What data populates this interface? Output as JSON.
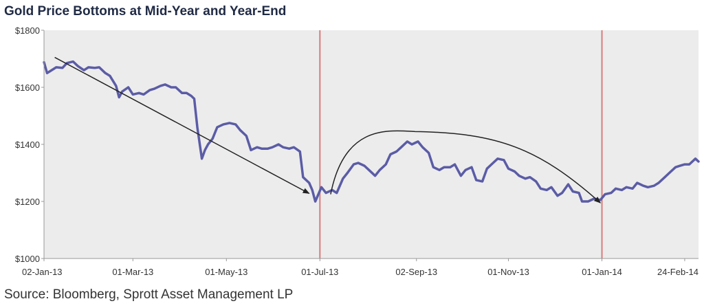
{
  "title": "Gold Price Bottoms at Mid-Year and Year-End",
  "source": "Source: Bloomberg, Sprott Asset Management LP",
  "colors": {
    "series": "#5b5ca6",
    "plot_bg": "#ececec",
    "marker_line": "#d97b7b",
    "annotation_arrow": "#222222"
  },
  "chart_data": {
    "type": "line",
    "title": "Gold Price Bottoms at Mid-Year and Year-End",
    "xlabel": "",
    "ylabel": "",
    "ylim": [
      1000,
      1800
    ],
    "xlim": [
      "2013-01-02",
      "2014-03-05"
    ],
    "grid": false,
    "y_ticks": [
      {
        "value": 1800,
        "label": "$1800"
      },
      {
        "value": 1600,
        "label": "$1600"
      },
      {
        "value": 1400,
        "label": "$1400"
      },
      {
        "value": 1200,
        "label": "$1200"
      },
      {
        "value": 1000,
        "label": "$1000"
      }
    ],
    "x_ticks": [
      {
        "date": "2013-01-02",
        "label": "02-Jan-13"
      },
      {
        "date": "2013-03-01",
        "label": "01-Mar-13"
      },
      {
        "date": "2013-05-01",
        "label": "01-May-13"
      },
      {
        "date": "2013-07-01",
        "label": "01-Jul-13"
      },
      {
        "date": "2013-09-02",
        "label": "02-Sep-13"
      },
      {
        "date": "2013-11-01",
        "label": "01-Nov-13"
      },
      {
        "date": "2014-01-01",
        "label": "01-Jan-14"
      },
      {
        "date": "2014-02-24",
        "label": "24-Feb-14"
      }
    ],
    "reference_lines": [
      "2013-07-01",
      "2014-01-01"
    ],
    "annotations": [
      {
        "type": "arrow",
        "from": {
          "x": "2013-01-09",
          "y": 1705
        },
        "to": {
          "x": "2013-06-24",
          "y": 1228
        }
      },
      {
        "type": "arc-arrow",
        "from": {
          "x": "2013-07-08",
          "y": 1225
        },
        "peak": {
          "x": "2013-09-01",
          "y": 1445
        },
        "to": {
          "x": "2013-12-31",
          "y": 1195
        }
      }
    ],
    "series": [
      {
        "values": [
          [
            "2013-01-02",
            1688
          ],
          [
            "2013-01-04",
            1650
          ],
          [
            "2013-01-07",
            1660
          ],
          [
            "2013-01-10",
            1670
          ],
          [
            "2013-01-14",
            1668
          ],
          [
            "2013-01-17",
            1685
          ],
          [
            "2013-01-21",
            1690
          ],
          [
            "2013-01-24",
            1675
          ],
          [
            "2013-01-28",
            1660
          ],
          [
            "2013-01-31",
            1670
          ],
          [
            "2013-02-04",
            1668
          ],
          [
            "2013-02-07",
            1670
          ],
          [
            "2013-02-11",
            1650
          ],
          [
            "2013-02-14",
            1640
          ],
          [
            "2013-02-18",
            1605
          ],
          [
            "2013-02-20",
            1565
          ],
          [
            "2013-02-22",
            1585
          ],
          [
            "2013-02-26",
            1600
          ],
          [
            "2013-03-01",
            1575
          ],
          [
            "2013-03-05",
            1580
          ],
          [
            "2013-03-08",
            1575
          ],
          [
            "2013-03-12",
            1590
          ],
          [
            "2013-03-15",
            1595
          ],
          [
            "2013-03-19",
            1605
          ],
          [
            "2013-03-22",
            1610
          ],
          [
            "2013-03-26",
            1600
          ],
          [
            "2013-03-29",
            1600
          ],
          [
            "2013-04-02",
            1580
          ],
          [
            "2013-04-05",
            1580
          ],
          [
            "2013-04-08",
            1570
          ],
          [
            "2013-04-10",
            1560
          ],
          [
            "2013-04-12",
            1460
          ],
          [
            "2013-04-15",
            1350
          ],
          [
            "2013-04-17",
            1380
          ],
          [
            "2013-04-19",
            1400
          ],
          [
            "2013-04-22",
            1420
          ],
          [
            "2013-04-25",
            1460
          ],
          [
            "2013-04-29",
            1470
          ],
          [
            "2013-05-03",
            1475
          ],
          [
            "2013-05-07",
            1470
          ],
          [
            "2013-05-10",
            1450
          ],
          [
            "2013-05-14",
            1430
          ],
          [
            "2013-05-17",
            1380
          ],
          [
            "2013-05-21",
            1390
          ],
          [
            "2013-05-24",
            1385
          ],
          [
            "2013-05-28",
            1385
          ],
          [
            "2013-05-31",
            1390
          ],
          [
            "2013-06-04",
            1400
          ],
          [
            "2013-06-07",
            1390
          ],
          [
            "2013-06-11",
            1385
          ],
          [
            "2013-06-14",
            1390
          ],
          [
            "2013-06-18",
            1375
          ],
          [
            "2013-06-20",
            1285
          ],
          [
            "2013-06-24",
            1265
          ],
          [
            "2013-06-26",
            1240
          ],
          [
            "2013-06-28",
            1200
          ],
          [
            "2013-07-02",
            1250
          ],
          [
            "2013-07-05",
            1230
          ],
          [
            "2013-07-09",
            1240
          ],
          [
            "2013-07-12",
            1230
          ],
          [
            "2013-07-16",
            1280
          ],
          [
            "2013-07-19",
            1300
          ],
          [
            "2013-07-23",
            1330
          ],
          [
            "2013-07-26",
            1335
          ],
          [
            "2013-07-30",
            1325
          ],
          [
            "2013-08-02",
            1310
          ],
          [
            "2013-08-06",
            1290
          ],
          [
            "2013-08-09",
            1310
          ],
          [
            "2013-08-13",
            1330
          ],
          [
            "2013-08-16",
            1365
          ],
          [
            "2013-08-20",
            1375
          ],
          [
            "2013-08-23",
            1390
          ],
          [
            "2013-08-27",
            1410
          ],
          [
            "2013-08-30",
            1400
          ],
          [
            "2013-09-03",
            1410
          ],
          [
            "2013-09-06",
            1390
          ],
          [
            "2013-09-10",
            1370
          ],
          [
            "2013-09-13",
            1320
          ],
          [
            "2013-09-17",
            1310
          ],
          [
            "2013-09-20",
            1320
          ],
          [
            "2013-09-24",
            1320
          ],
          [
            "2013-09-27",
            1330
          ],
          [
            "2013-10-01",
            1290
          ],
          [
            "2013-10-04",
            1310
          ],
          [
            "2013-10-08",
            1320
          ],
          [
            "2013-10-11",
            1275
          ],
          [
            "2013-10-15",
            1270
          ],
          [
            "2013-10-18",
            1315
          ],
          [
            "2013-10-22",
            1335
          ],
          [
            "2013-10-25",
            1350
          ],
          [
            "2013-10-29",
            1345
          ],
          [
            "2013-11-01",
            1315
          ],
          [
            "2013-11-05",
            1305
          ],
          [
            "2013-11-08",
            1290
          ],
          [
            "2013-11-12",
            1280
          ],
          [
            "2013-11-15",
            1285
          ],
          [
            "2013-11-19",
            1270
          ],
          [
            "2013-11-22",
            1245
          ],
          [
            "2013-11-26",
            1240
          ],
          [
            "2013-11-29",
            1250
          ],
          [
            "2013-12-03",
            1220
          ],
          [
            "2013-12-06",
            1230
          ],
          [
            "2013-12-10",
            1260
          ],
          [
            "2013-12-13",
            1235
          ],
          [
            "2013-12-17",
            1230
          ],
          [
            "2013-12-19",
            1200
          ],
          [
            "2013-12-23",
            1200
          ],
          [
            "2013-12-27",
            1210
          ],
          [
            "2013-12-31",
            1205
          ],
          [
            "2014-01-03",
            1225
          ],
          [
            "2014-01-07",
            1230
          ],
          [
            "2014-01-10",
            1245
          ],
          [
            "2014-01-14",
            1240
          ],
          [
            "2014-01-17",
            1250
          ],
          [
            "2014-01-21",
            1245
          ],
          [
            "2014-01-24",
            1265
          ],
          [
            "2014-01-28",
            1255
          ],
          [
            "2014-01-31",
            1250
          ],
          [
            "2014-02-04",
            1255
          ],
          [
            "2014-02-07",
            1265
          ],
          [
            "2014-02-11",
            1285
          ],
          [
            "2014-02-14",
            1300
          ],
          [
            "2014-02-18",
            1320
          ],
          [
            "2014-02-21",
            1325
          ],
          [
            "2014-02-24",
            1330
          ],
          [
            "2014-02-27",
            1330
          ],
          [
            "2014-03-03",
            1350
          ],
          [
            "2014-03-05",
            1340
          ]
        ]
      }
    ]
  }
}
